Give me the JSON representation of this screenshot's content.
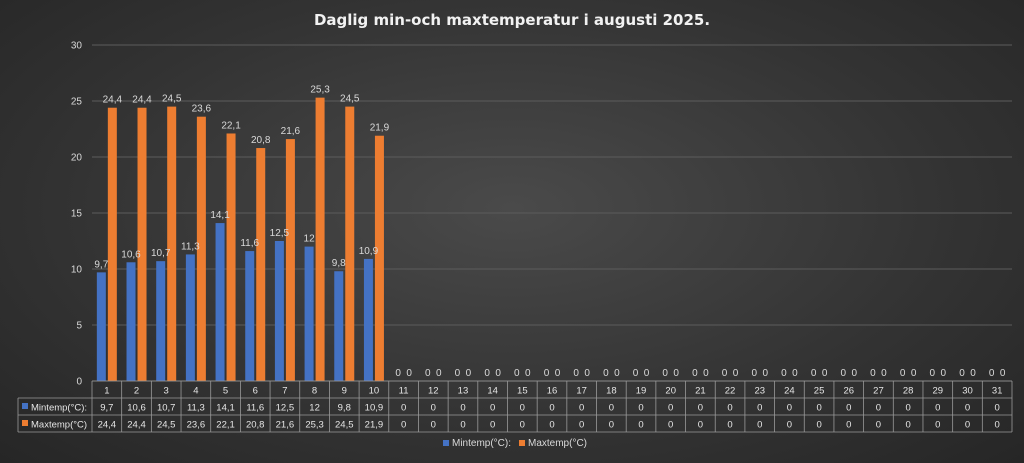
{
  "chart_data": {
    "type": "bar",
    "title": "Daglig min-och maxtemperatur i augusti 2025.",
    "categories": [
      "1",
      "2",
      "3",
      "4",
      "5",
      "6",
      "7",
      "8",
      "9",
      "10",
      "11",
      "12",
      "13",
      "14",
      "15",
      "16",
      "17",
      "18",
      "19",
      "20",
      "21",
      "22",
      "23",
      "24",
      "25",
      "26",
      "27",
      "28",
      "29",
      "30",
      "31"
    ],
    "series": [
      {
        "name": "Mintemp(°C):",
        "color": "#4472c4",
        "values": [
          9.7,
          10.6,
          10.7,
          11.3,
          14.1,
          11.6,
          12.5,
          12,
          9.8,
          10.9,
          0,
          0,
          0,
          0,
          0,
          0,
          0,
          0,
          0,
          0,
          0,
          0,
          0,
          0,
          0,
          0,
          0,
          0,
          0,
          0,
          0
        ],
        "labels": [
          "9,7",
          "10,6",
          "10,7",
          "11,3",
          "14,1",
          "11,6",
          "12,5",
          "12",
          "9,8",
          "10,9",
          "0",
          "0",
          "0",
          "0",
          "0",
          "0",
          "0",
          "0",
          "0",
          "0",
          "0",
          "0",
          "0",
          "0",
          "0",
          "0",
          "0",
          "0",
          "0",
          "0",
          "0"
        ]
      },
      {
        "name": "Maxtemp(°C)",
        "color": "#ed7d31",
        "values": [
          24.4,
          24.4,
          24.5,
          23.6,
          22.1,
          20.8,
          21.6,
          25.3,
          24.5,
          21.9,
          0,
          0,
          0,
          0,
          0,
          0,
          0,
          0,
          0,
          0,
          0,
          0,
          0,
          0,
          0,
          0,
          0,
          0,
          0,
          0,
          0
        ],
        "labels": [
          "24,4",
          "24,4",
          "24,5",
          "23,6",
          "22,1",
          "20,8",
          "21,6",
          "25,3",
          "24,5",
          "21,9",
          "0",
          "0",
          "0",
          "0",
          "0",
          "0",
          "0",
          "0",
          "0",
          "0",
          "0",
          "0",
          "0",
          "0",
          "0",
          "0",
          "0",
          "0",
          "0",
          "0",
          "0"
        ]
      }
    ],
    "ylim": [
      0,
      30
    ],
    "yticks": [
      "0",
      "5",
      "10",
      "15",
      "20",
      "25",
      "30"
    ],
    "grid": true,
    "legend": "bottom",
    "data_table": true
  }
}
